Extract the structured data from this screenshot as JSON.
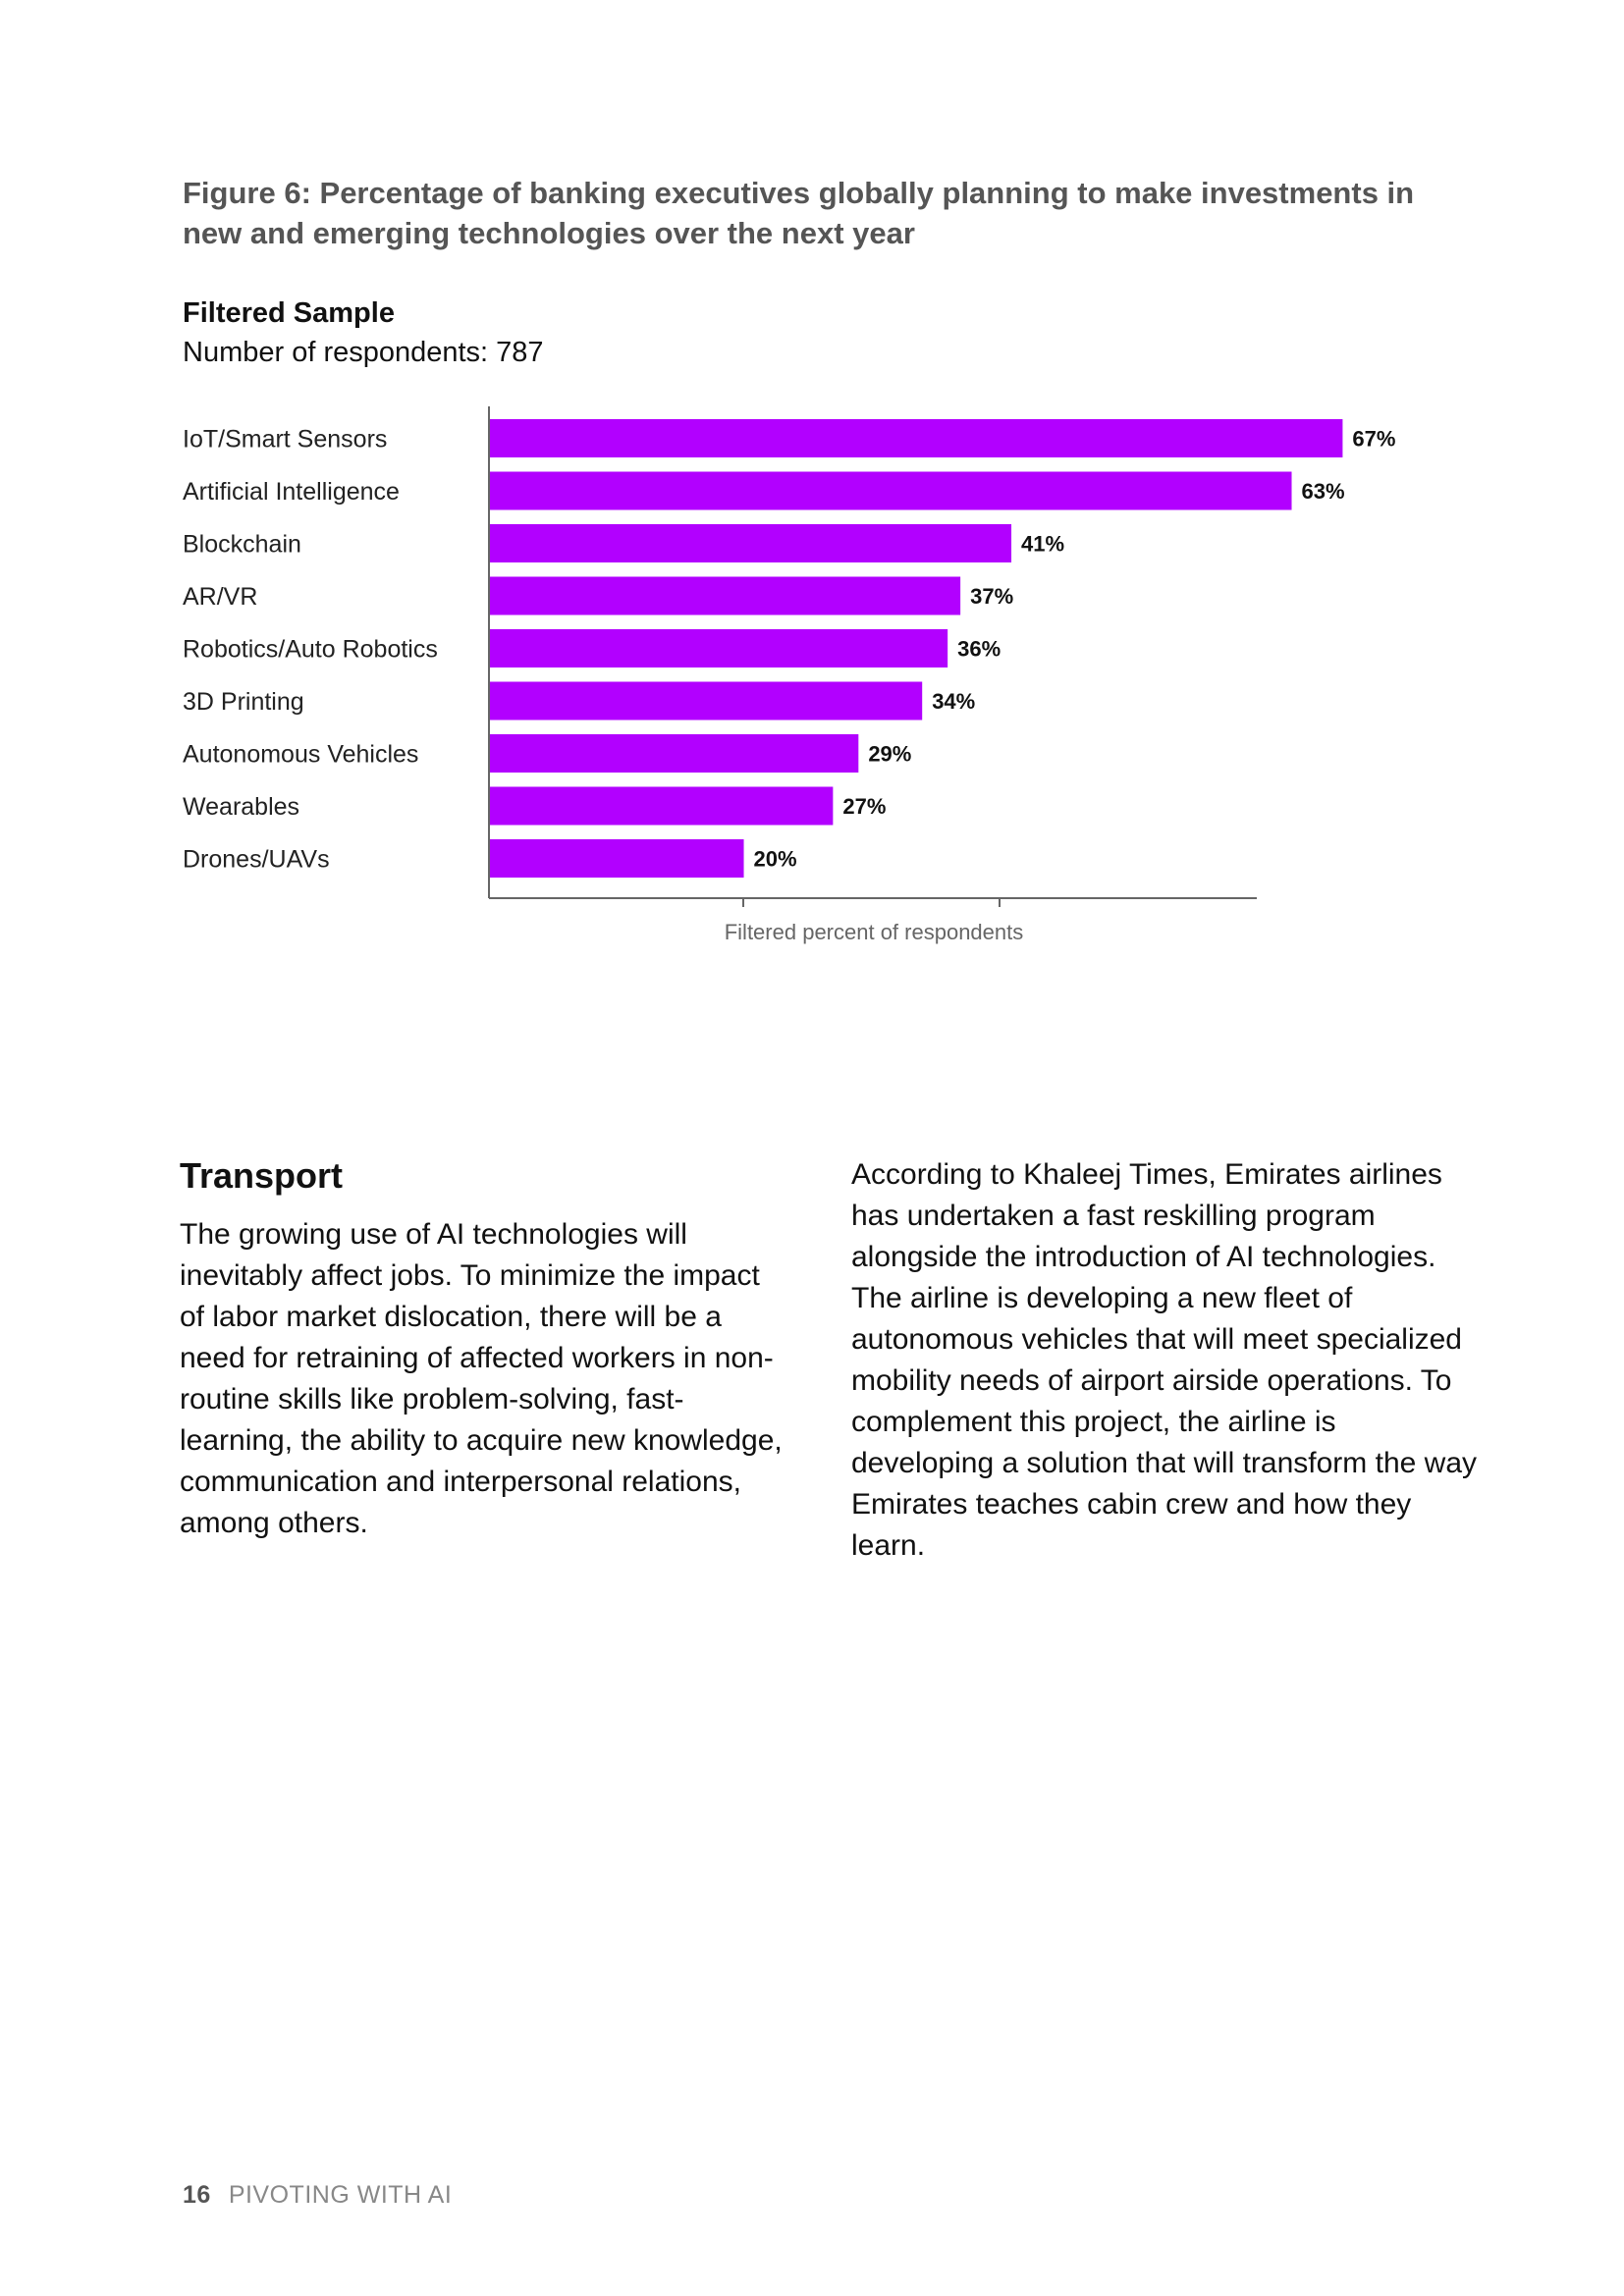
{
  "figure": {
    "title": "Figure 6: Percentage of banking executives globally planning to make investments in new and emerging technologies over the next year",
    "sample_label": "Filtered Sample",
    "respondents": "Number of respondents: 787"
  },
  "chart_data": {
    "type": "bar",
    "orientation": "horizontal",
    "categories": [
      "IoT/Smart Sensors",
      "Artificial Intelligence",
      "Blockchain",
      "AR/VR",
      "Robotics/Auto Robotics",
      "3D Printing",
      "Autonomous Vehicles",
      "Wearables",
      "Drones/UAVs"
    ],
    "values": [
      67,
      63,
      41,
      37,
      36,
      34,
      29,
      27,
      20
    ],
    "value_labels": [
      "67%",
      "63%",
      "41%",
      "37%",
      "36%",
      "34%",
      "29%",
      "27%",
      "20%"
    ],
    "xlabel": "Filtered percent of respondents",
    "xlim": [
      0,
      63.5
    ],
    "grid": false,
    "bar_color": "#b200ff"
  },
  "section": {
    "heading": "Transport",
    "left_paragraph": "The growing use of AI technologies will inevitably affect jobs. To minimize the impact of labor market dislocation, there will be a need for retraining of affected workers in non-routine skills like problem-solving, fast-learning, the ability to acquire new knowledge, communication and interpersonal relations, among others.",
    "right_paragraph": "According to Khaleej Times, Emirates airlines has undertaken a fast reskilling program alongside the introduction of AI technologies. The airline is developing a new fleet of autonomous vehicles that will meet specialized mobility needs of airport airside operations. To complement this project, the airline is developing a solution that will transform the way Emirates teaches cabin crew and how they learn."
  },
  "footer": {
    "page_number": "16",
    "publication": "PIVOTING WITH AI"
  }
}
